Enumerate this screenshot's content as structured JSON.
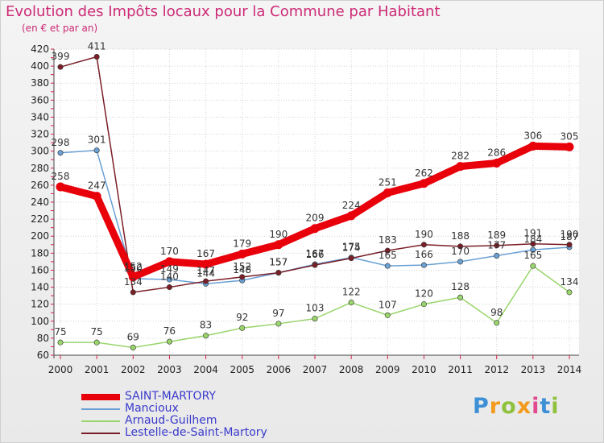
{
  "title": "Evolution des Impôts locaux pour la Commune par Habitant",
  "subtitle": "(en € et par an)",
  "logo": {
    "text": "Proxiti"
  },
  "chart_data": {
    "type": "line",
    "title": "Evolution des Impôts locaux pour la Commune par Habitant",
    "subtitle": "(en € et par an)",
    "xlabel": "",
    "ylabel": "",
    "x": [
      2000,
      2001,
      2002,
      2003,
      2004,
      2005,
      2006,
      2007,
      2008,
      2009,
      2010,
      2011,
      2012,
      2013,
      2014
    ],
    "ylim": [
      60,
      420
    ],
    "yticks": [
      60,
      80,
      100,
      120,
      140,
      160,
      180,
      200,
      220,
      240,
      260,
      280,
      300,
      320,
      340,
      360,
      380,
      400,
      420
    ],
    "grid": true,
    "legend_position": "bottom-left",
    "series": [
      {
        "name": "SAINT-MARTORY",
        "color": "#e8000b",
        "style": "thick",
        "values": [
          258,
          247,
          152,
          170,
          167,
          179,
          190,
          209,
          224,
          251,
          262,
          282,
          286,
          306,
          305
        ]
      },
      {
        "name": "Mancioux",
        "color": "#6aa0d4",
        "style": "thin",
        "values": [
          298,
          301,
          150,
          149,
          144,
          148,
          157,
          167,
          175,
          165,
          166,
          170,
          177,
          184,
          187
        ]
      },
      {
        "name": "Arnaud-Guilhem",
        "color": "#9ad56c",
        "style": "thin",
        "values": [
          75,
          75,
          69,
          76,
          83,
          92,
          97,
          103,
          122,
          107,
          120,
          128,
          98,
          165,
          134
        ]
      },
      {
        "name": "Lestelle-de-Saint-Martory",
        "color": "#7a1e27",
        "style": "thin",
        "values": [
          399,
          411,
          134,
          140,
          147,
          152,
          157,
          166,
          174,
          183,
          190,
          188,
          189,
          191,
          190
        ]
      }
    ]
  }
}
